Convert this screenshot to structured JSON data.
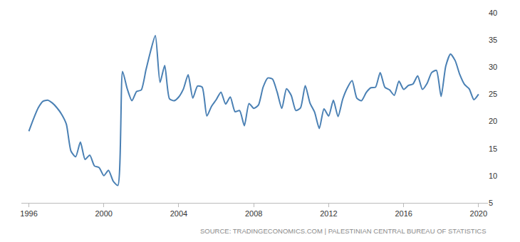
{
  "chart_data": {
    "type": "line",
    "source": "SOURCE: TRADINGECONOMICS.COM | PALESTINIAN CENTRAL BUREAU OF STATISTICS",
    "x": [
      1996.0,
      1996.25,
      1996.5,
      1996.75,
      1997.0,
      1997.25,
      1997.5,
      1997.75,
      1998.0,
      1998.25,
      1998.5,
      1998.75,
      1999.0,
      1999.25,
      1999.5,
      1999.75,
      2000.0,
      2000.25,
      2000.5,
      2000.75,
      2001.0,
      2001.25,
      2001.5,
      2001.75,
      2002.0,
      2002.25,
      2002.5,
      2002.75,
      2003.0,
      2003.25,
      2003.5,
      2003.75,
      2004.0,
      2004.25,
      2004.5,
      2004.75,
      2005.0,
      2005.25,
      2005.5,
      2005.75,
      2006.0,
      2006.25,
      2006.5,
      2006.75,
      2007.0,
      2007.25,
      2007.5,
      2007.75,
      2008.0,
      2008.25,
      2008.5,
      2008.75,
      2009.0,
      2009.25,
      2009.5,
      2009.75,
      2010.0,
      2010.25,
      2010.5,
      2010.75,
      2011.0,
      2011.25,
      2011.5,
      2011.75,
      2012.0,
      2012.25,
      2012.5,
      2012.75,
      2013.0,
      2013.25,
      2013.5,
      2013.75,
      2014.0,
      2014.25,
      2014.5,
      2014.75,
      2015.0,
      2015.25,
      2015.5,
      2015.75,
      2016.0,
      2016.25,
      2016.5,
      2016.75,
      2017.0,
      2017.25,
      2017.5,
      2017.75,
      2018.0,
      2018.25,
      2018.5,
      2018.75,
      2019.0,
      2019.25,
      2019.5,
      2019.75,
      2020.0
    ],
    "values": [
      18.2,
      20.5,
      22.5,
      23.7,
      23.9,
      23.4,
      22.5,
      21.3,
      19.5,
      14.5,
      13.5,
      16.2,
      13.0,
      13.8,
      11.8,
      11.5,
      10.0,
      11.0,
      9.0,
      8.2,
      29.2,
      26.0,
      23.8,
      25.5,
      25.8,
      29.5,
      33.0,
      35.8,
      27.2,
      30.3,
      24.2,
      23.8,
      24.5,
      26.0,
      28.6,
      24.3,
      26.5,
      26.3,
      21.0,
      22.8,
      24.0,
      25.4,
      23.2,
      24.5,
      21.8,
      22.0,
      19.2,
      23.3,
      22.4,
      23.0,
      26.3,
      28.0,
      27.8,
      25.4,
      22.4,
      26.0,
      24.8,
      22.0,
      22.5,
      26.6,
      23.4,
      21.7,
      18.7,
      22.3,
      21.0,
      23.9,
      20.9,
      24.1,
      26.2,
      27.5,
      24.3,
      23.8,
      25.3,
      26.2,
      26.3,
      29.0,
      26.3,
      25.8,
      24.8,
      27.4,
      25.9,
      26.6,
      26.9,
      28.4,
      25.9,
      27.0,
      29.0,
      29.4,
      24.6,
      30.2,
      32.4,
      31.2,
      28.6,
      26.8,
      26.0,
      24.0,
      25.0
    ],
    "color": "#4a80b4",
    "xlim": [
      1995.6,
      2020.5
    ],
    "xticks": [
      1996,
      2000,
      2004,
      2008,
      2012,
      2016,
      2020
    ],
    "ylim": [
      5,
      40
    ],
    "yticks": [
      5,
      10,
      15,
      20,
      25,
      30,
      35,
      40
    ],
    "grid": false
  }
}
